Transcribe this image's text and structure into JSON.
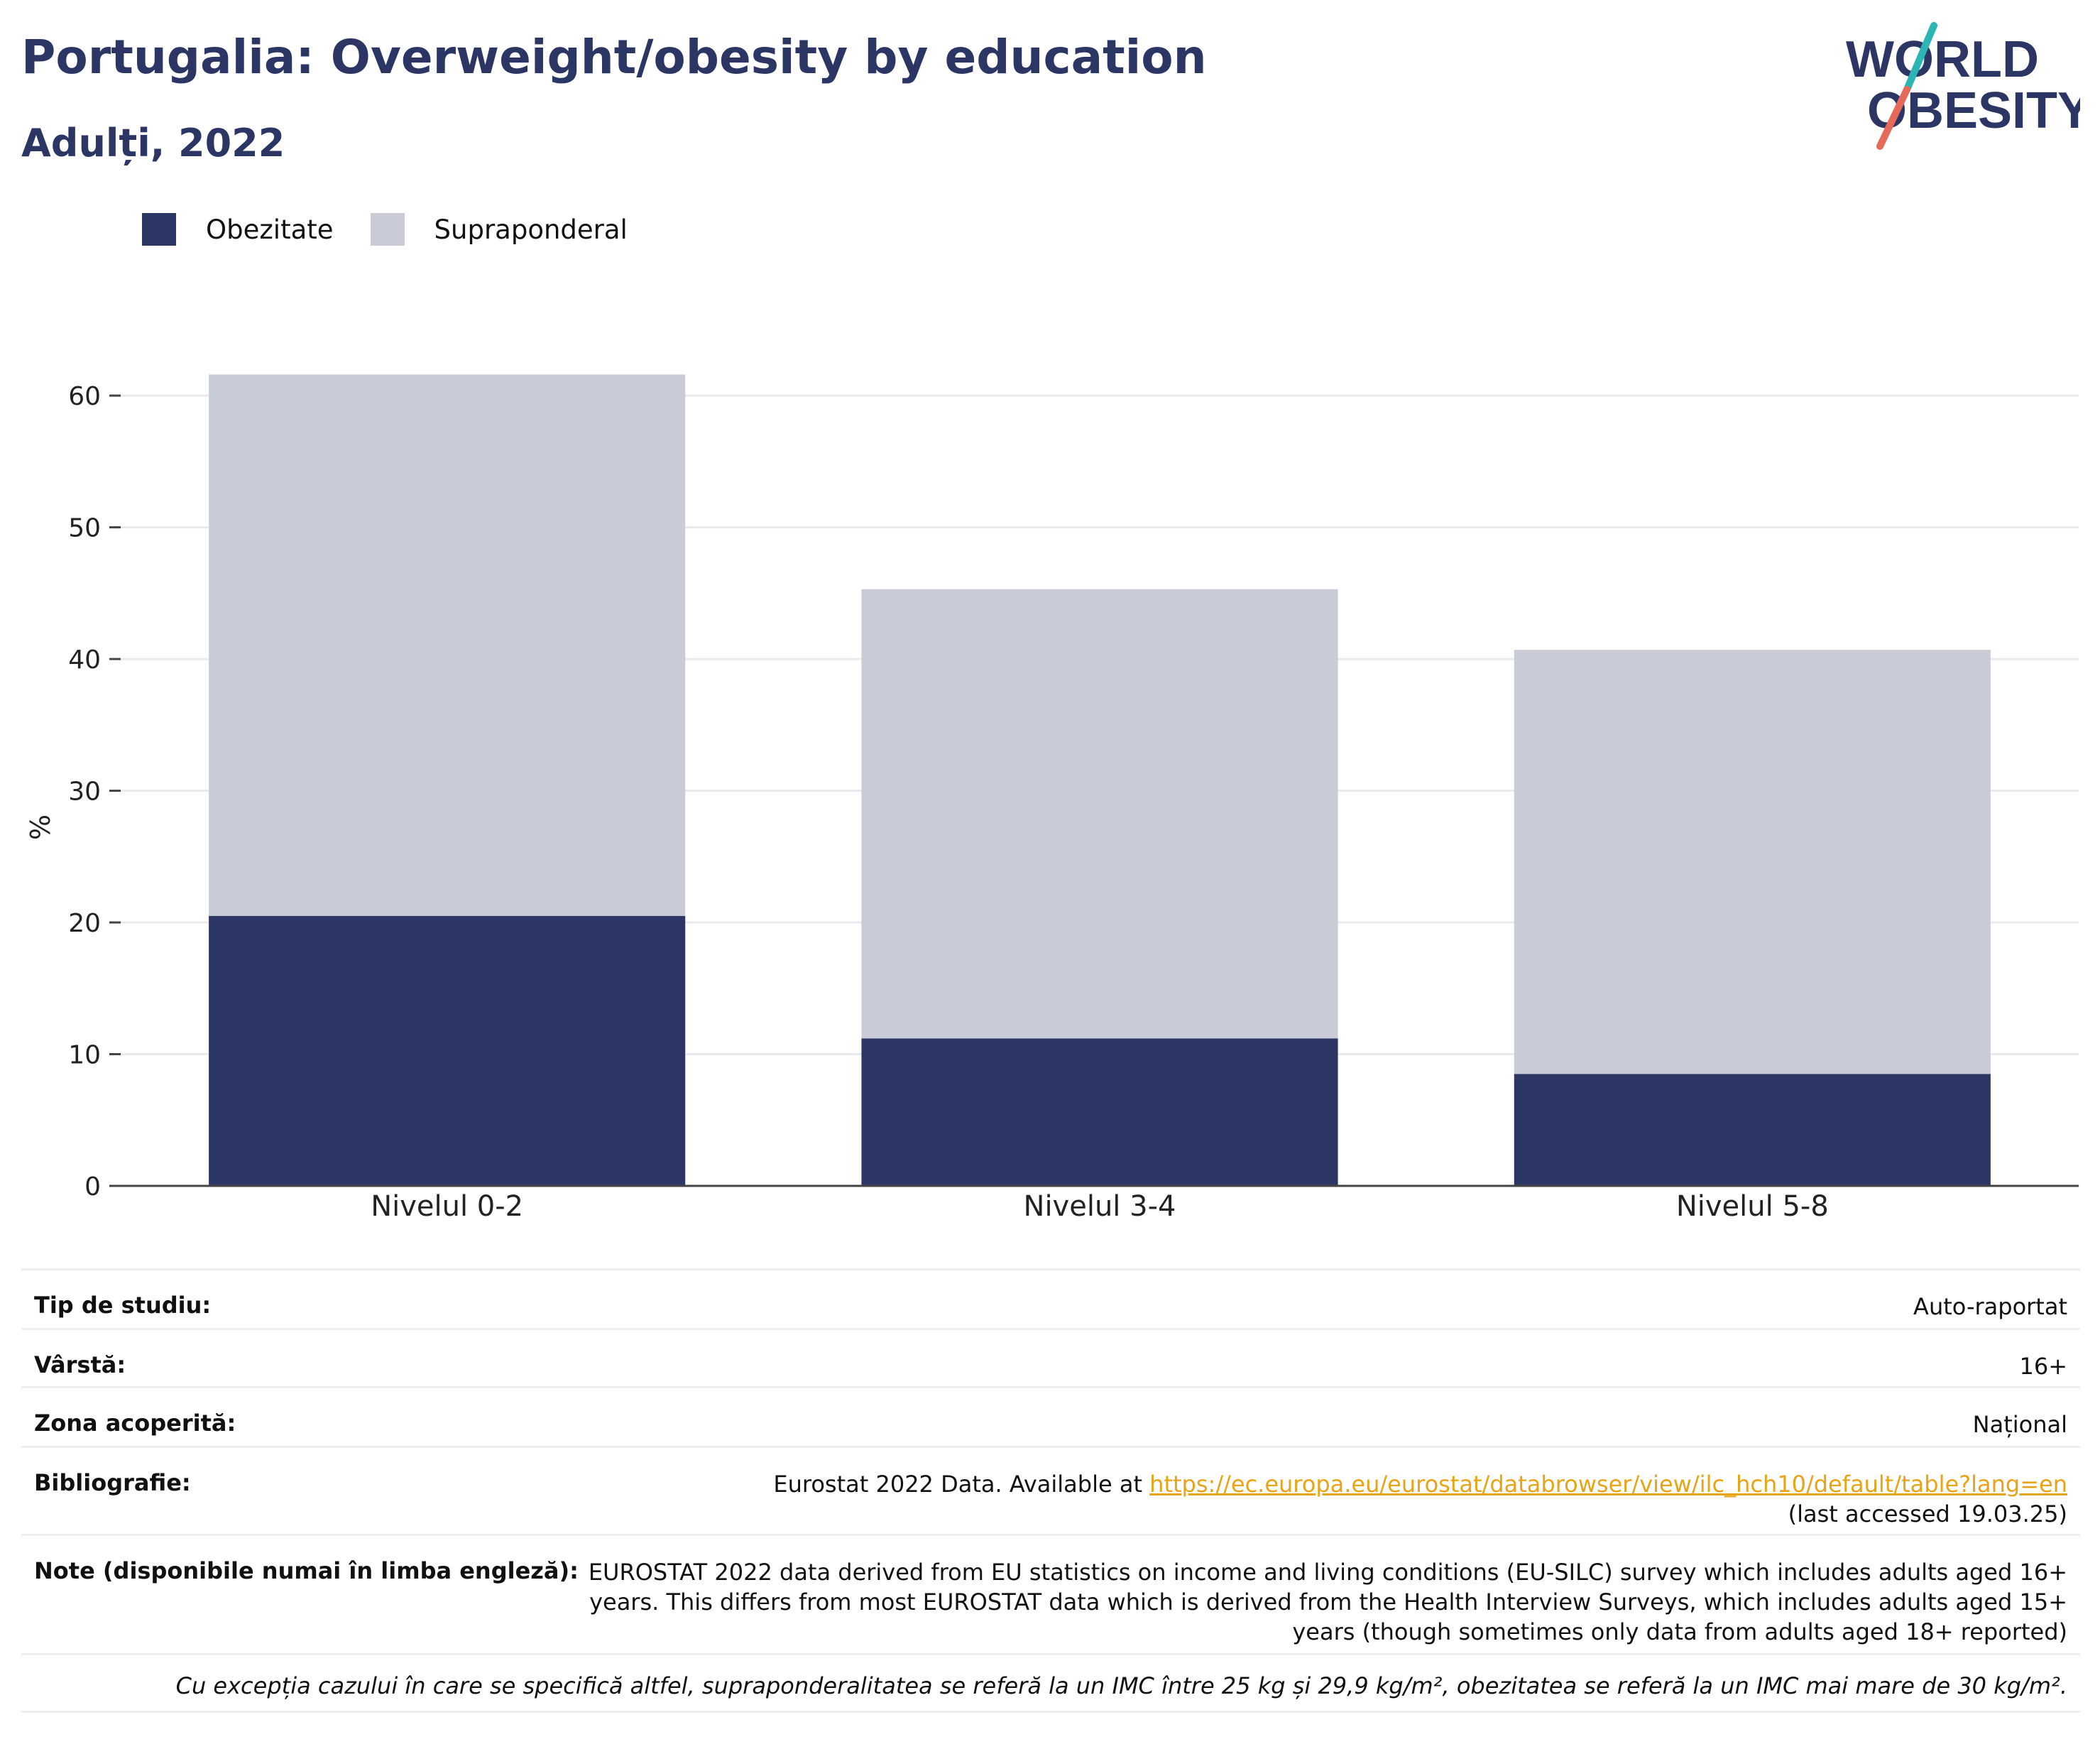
{
  "header": {
    "title": "Portugalia: Overweight/obesity by education",
    "subtitle": "Adulți, 2022"
  },
  "logo": {
    "line1": "WORLD",
    "line2": "OBESITY",
    "accent_top": "#2bb5b5",
    "accent_bottom": "#e66a5a"
  },
  "legend": [
    {
      "label": "Obezitate",
      "color": "#2b3664"
    },
    {
      "label": "Supraponderal",
      "color": "#c9ccd7"
    }
  ],
  "chart_data": {
    "type": "bar",
    "stacked": true,
    "categories": [
      "Nivelul 0-2",
      "Nivelul 3-4",
      "Nivelul 5-8"
    ],
    "series": [
      {
        "name": "Obezitate",
        "color": "#2b3664",
        "values": [
          20.5,
          11.2,
          8.5
        ]
      },
      {
        "name": "Supraponderal",
        "color": "#c9ccd7",
        "values": [
          41.1,
          34.1,
          32.2
        ]
      }
    ],
    "ylabel": "%",
    "ylim": [
      0,
      62
    ],
    "yticks": [
      0,
      10,
      20,
      30,
      40,
      50,
      60
    ],
    "grid": true,
    "legend_position": "top-left"
  },
  "meta": {
    "study_type": {
      "label": "Tip de studiu:",
      "value": "Auto-raportat"
    },
    "age": {
      "label": "Vârstă:",
      "value": "16+"
    },
    "coverage": {
      "label": "Zona acoperită:",
      "value": "Național"
    },
    "bibliography": {
      "label": "Bibliografie:",
      "prefix": "Eurostat 2022 Data. Available at ",
      "link": "https://ec.europa.eu/eurostat/databrowser/view/ilc_hch10/default/table?lang=en",
      "suffix": " (last accessed 19.03.25)"
    },
    "notes": {
      "label": "Note (disponibile numai în limba engleză):",
      "value": "EUROSTAT 2022 data derived from EU statistics on income and living conditions (EU-SILC) survey which includes adults aged 16+ years. This differs from most EUROSTAT data which is derived from the Health Interview Surveys, which includes adults aged 15+ years (though sometimes only data from adults aged 18+ reported)"
    },
    "footnote": "Cu excepția cazului în care se specifică altfel, supraponderalitatea se referă la un IMC între 25 kg și 29,9 kg/m², obezitatea se referă la un IMC mai mare de 30 kg/m²."
  }
}
